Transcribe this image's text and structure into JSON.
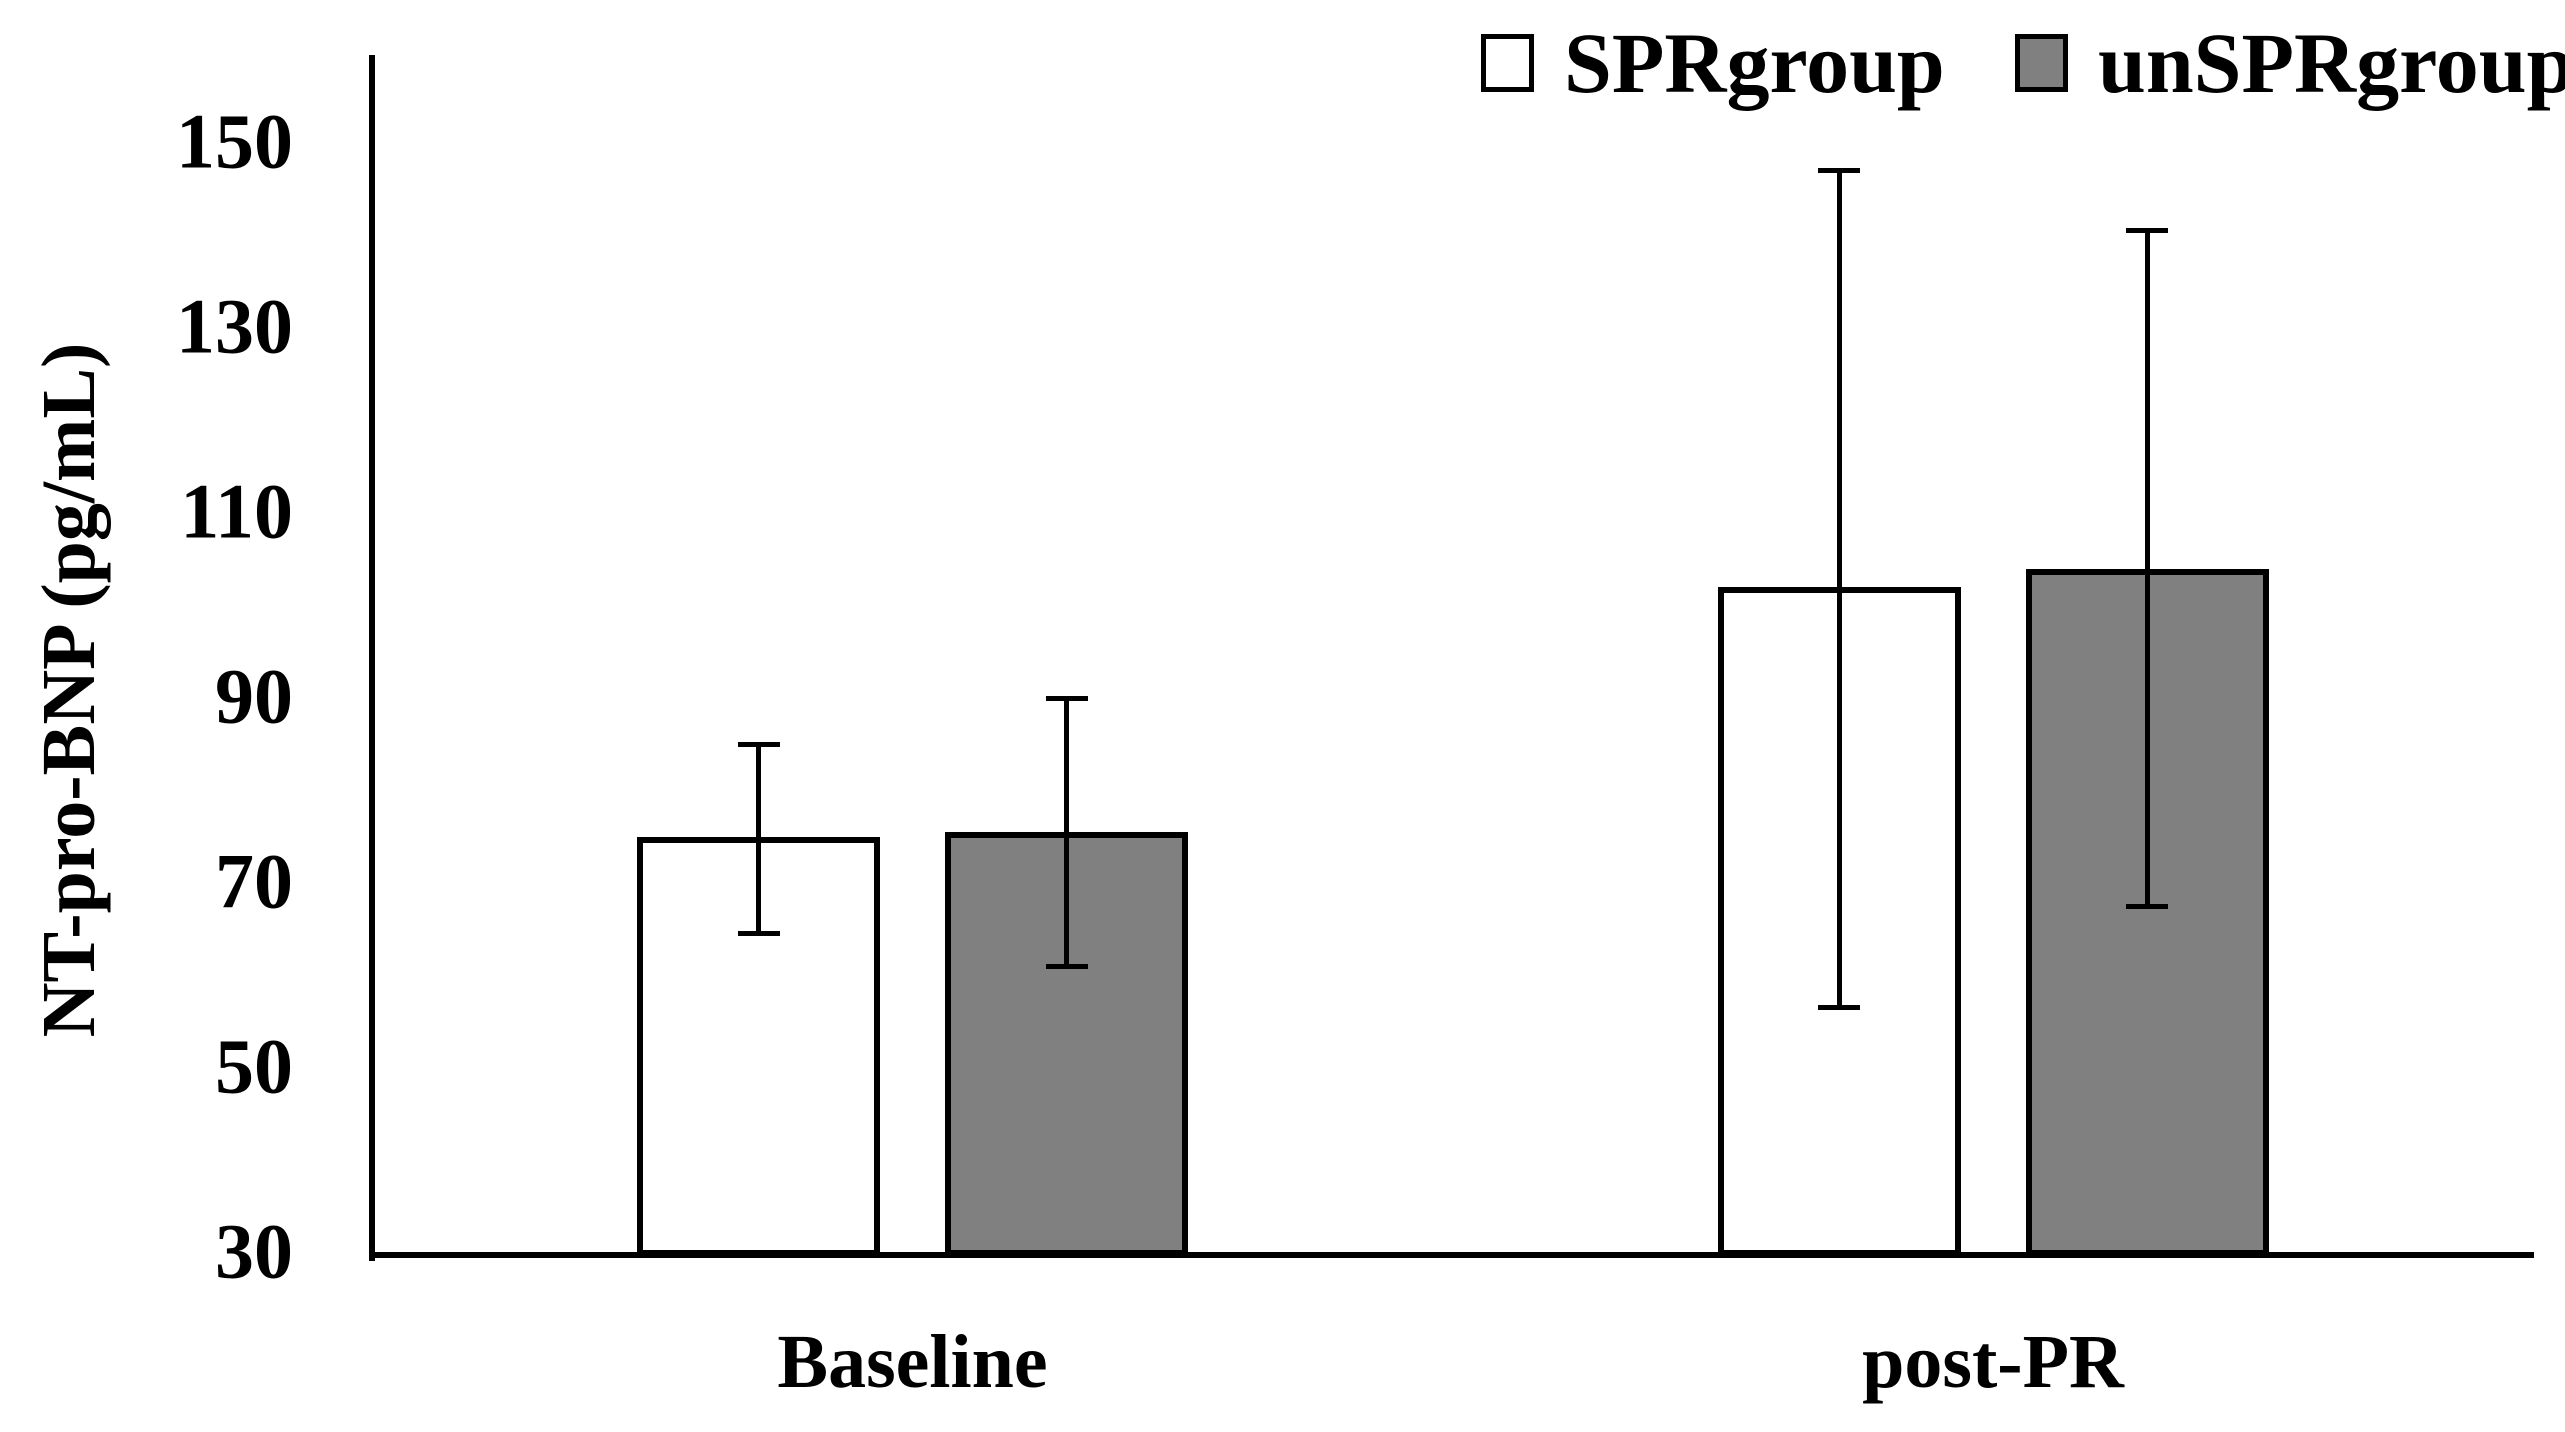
{
  "chart_data": {
    "type": "bar",
    "title": "",
    "categories": [
      "Baseline",
      "post-PR"
    ],
    "series": [
      {
        "name": "SPRgroup",
        "fill": "#ffffff",
        "values": [
          75,
          102
        ],
        "error_upper": [
          85,
          147
        ],
        "error_lower": [
          64.5,
          56.5
        ]
      },
      {
        "name": "unSPRgroup",
        "fill": "#808080",
        "values": [
          75.5,
          104
        ],
        "error_upper": [
          90,
          140.5
        ],
        "error_lower": [
          61,
          67.5
        ]
      }
    ],
    "xlabel": "",
    "ylabel": "NT-pro-BNP (pg/mL)",
    "yticks": [
      30,
      50,
      70,
      90,
      110,
      130,
      150
    ],
    "ylim": [
      30,
      160
    ],
    "grid": false,
    "legend_position": "top",
    "axis_color": "#000000",
    "bar_border_color": "#000000",
    "error_bar_color": "#000000",
    "background_color": "#ffffff"
  }
}
